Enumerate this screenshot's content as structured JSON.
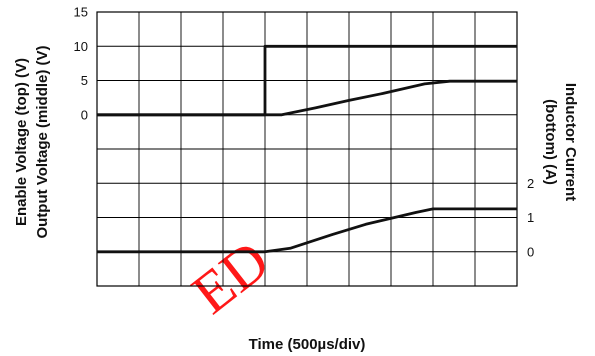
{
  "chart_data": {
    "type": "line",
    "title": "",
    "xlabel": "Time (500µs/div)",
    "left_ylabels": [
      "Enable Voltage (top) (V)",
      "Output Voltage (middle) (V)"
    ],
    "right_ylabels": [
      "Inductor Current",
      "(bottom) (A)"
    ],
    "x_divisions": 10,
    "x_unit": "ms",
    "grid": true,
    "left_ticks": [
      {
        "label": "15",
        "value": 15
      },
      {
        "label": "10",
        "value": 10
      },
      {
        "label": "5",
        "value": 5
      },
      {
        "label": "0",
        "value": 0
      }
    ],
    "left_scale": {
      "top": 15,
      "per_div": 5
    },
    "right_ticks": [
      {
        "label": "2",
        "value": 2
      },
      {
        "label": "1",
        "value": 1
      },
      {
        "label": "0",
        "value": 0
      }
    ],
    "right_scale": {
      "zero_div_from_top": 7,
      "per_div": 1
    },
    "series": [
      {
        "axis": "left",
        "x": [
          0,
          2.0,
          2.0,
          5.0
        ],
        "values": [
          0,
          0,
          10,
          10
        ]
      },
      {
        "axis": "left",
        "x": [
          0,
          2.0,
          2.2,
          2.6,
          3.0,
          3.4,
          3.9,
          4.2,
          5.0
        ],
        "values": [
          0,
          0,
          0,
          1.0,
          2.1,
          3.1,
          4.5,
          4.9,
          4.9
        ]
      },
      {
        "axis": "right",
        "x": [
          0,
          2.0,
          2.3,
          2.8,
          3.2,
          3.8,
          4.0,
          4.2,
          5.0
        ],
        "values": [
          0,
          0,
          0.1,
          0.5,
          0.8,
          1.15,
          1.25,
          1.25,
          1.25
        ]
      }
    ]
  },
  "watermark": "ED"
}
